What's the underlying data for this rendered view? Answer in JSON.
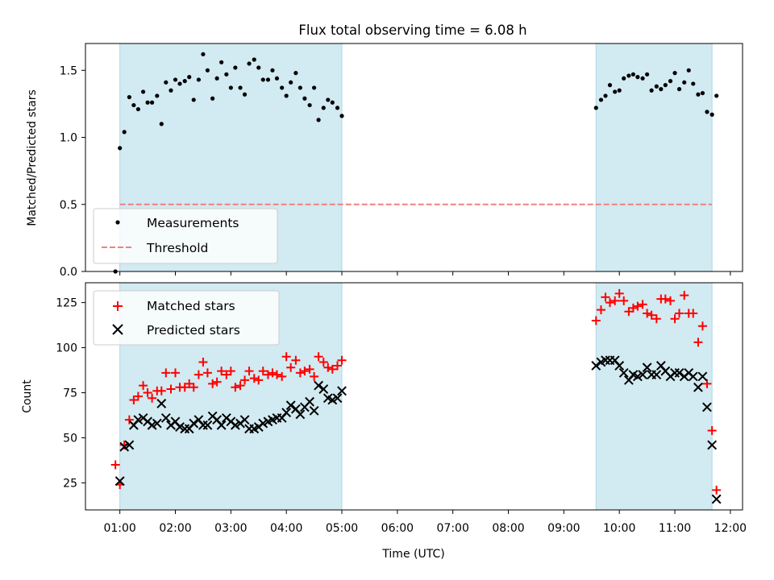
{
  "chart_data": {
    "title": "Flux total observing time = 6.08 h",
    "xlabel": "Time (UTC)",
    "x_range_hours": [
      0.38,
      12.22
    ],
    "x_ticks": [
      {
        "h": 1,
        "label": "01:00"
      },
      {
        "h": 2,
        "label": "02:00"
      },
      {
        "h": 3,
        "label": "03:00"
      },
      {
        "h": 4,
        "label": "04:00"
      },
      {
        "h": 5,
        "label": "05:00"
      },
      {
        "h": 6,
        "label": "06:00"
      },
      {
        "h": 7,
        "label": "07:00"
      },
      {
        "h": 8,
        "label": "08:00"
      },
      {
        "h": 9,
        "label": "09:00"
      },
      {
        "h": 10,
        "label": "10:00"
      },
      {
        "h": 11,
        "label": "11:00"
      },
      {
        "h": 12,
        "label": "12:00"
      }
    ],
    "shaded_intervals_hours": [
      [
        1.0,
        5.0
      ],
      [
        9.58,
        11.67
      ]
    ],
    "shade_color": "#add8e6",
    "top": {
      "type": "scatter",
      "ylabel": "Matched/Predicted stars",
      "ylim": [
        0,
        1.7
      ],
      "yticks": [
        {
          "v": 0,
          "label": "0.0"
        },
        {
          "v": 0.5,
          "label": "0.5"
        },
        {
          "v": 1.0,
          "label": "1.0"
        },
        {
          "v": 1.5,
          "label": "1.5"
        }
      ],
      "legend": {
        "position": "lower-left",
        "entries": [
          "Measurements",
          "Threshold"
        ]
      },
      "series": [
        {
          "name": "Measurements",
          "color": "#000000",
          "x": [
            0.92,
            1.0,
            1.08,
            1.17,
            1.25,
            1.33,
            1.42,
            1.5,
            1.58,
            1.67,
            1.75,
            1.83,
            1.92,
            2.0,
            2.08,
            2.17,
            2.25,
            2.33,
            2.42,
            2.5,
            2.58,
            2.67,
            2.75,
            2.83,
            2.92,
            3.0,
            3.08,
            3.17,
            3.25,
            3.33,
            3.42,
            3.5,
            3.58,
            3.67,
            3.75,
            3.83,
            3.92,
            4.0,
            4.08,
            4.17,
            4.25,
            4.33,
            4.42,
            4.5,
            4.58,
            4.67,
            4.75,
            4.83,
            4.92,
            5.0,
            9.58,
            9.67,
            9.75,
            9.83,
            9.92,
            10.0,
            10.08,
            10.17,
            10.25,
            10.33,
            10.42,
            10.5,
            10.58,
            10.67,
            10.75,
            10.83,
            10.92,
            11.0,
            11.08,
            11.17,
            11.25,
            11.33,
            11.42,
            11.5,
            11.58,
            11.67,
            11.75
          ],
          "y": [
            0.0,
            0.92,
            1.04,
            1.3,
            1.24,
            1.21,
            1.34,
            1.26,
            1.26,
            1.31,
            1.1,
            1.41,
            1.35,
            1.43,
            1.4,
            1.42,
            1.45,
            1.28,
            1.43,
            1.62,
            1.5,
            1.29,
            1.44,
            1.56,
            1.47,
            1.37,
            1.52,
            1.37,
            1.32,
            1.55,
            1.58,
            1.52,
            1.43,
            1.43,
            1.5,
            1.44,
            1.37,
            1.31,
            1.41,
            1.48,
            1.37,
            1.29,
            1.24,
            1.37,
            1.13,
            1.22,
            1.28,
            1.26,
            1.22,
            1.16,
            1.22,
            1.28,
            1.31,
            1.39,
            1.34,
            1.35,
            1.44,
            1.46,
            1.47,
            1.45,
            1.44,
            1.47,
            1.35,
            1.38,
            1.36,
            1.39,
            1.42,
            1.48,
            1.36,
            1.41,
            1.5,
            1.4,
            1.32,
            1.33,
            1.19,
            1.17,
            1.31
          ]
        },
        {
          "name": "Threshold",
          "type": "dashed-line",
          "color": "#f08080",
          "x": [
            1.0,
            11.67
          ],
          "y": [
            0.5,
            0.5
          ]
        }
      ]
    },
    "bottom": {
      "type": "scatter",
      "ylabel": "Count",
      "ylim": [
        10,
        136
      ],
      "yticks": [
        {
          "v": 25,
          "label": "25"
        },
        {
          "v": 50,
          "label": "50"
        },
        {
          "v": 75,
          "label": "75"
        },
        {
          "v": 100,
          "label": "100"
        },
        {
          "v": 125,
          "label": "125"
        }
      ],
      "legend": {
        "position": "upper-left",
        "entries": [
          "Matched stars",
          "Predicted stars"
        ]
      },
      "series": [
        {
          "name": "Matched stars",
          "marker": "plus",
          "color": "#ff0000",
          "x": [
            0.92,
            1.0,
            1.08,
            1.17,
            1.25,
            1.33,
            1.42,
            1.5,
            1.58,
            1.67,
            1.75,
            1.83,
            1.92,
            2.0,
            2.08,
            2.17,
            2.25,
            2.33,
            2.42,
            2.5,
            2.58,
            2.67,
            2.75,
            2.83,
            2.92,
            3.0,
            3.08,
            3.17,
            3.25,
            3.33,
            3.42,
            3.5,
            3.58,
            3.67,
            3.75,
            3.83,
            3.92,
            4.0,
            4.08,
            4.17,
            4.25,
            4.33,
            4.42,
            4.5,
            4.58,
            4.67,
            4.75,
            4.83,
            4.92,
            5.0,
            9.58,
            9.67,
            9.75,
            9.83,
            9.92,
            10.0,
            10.08,
            10.17,
            10.25,
            10.33,
            10.42,
            10.5,
            10.58,
            10.67,
            10.75,
            10.83,
            10.92,
            11.0,
            11.08,
            11.17,
            11.25,
            11.33,
            11.42,
            11.5,
            11.58,
            11.67,
            11.75
          ],
          "y": [
            35,
            24,
            46,
            60,
            71,
            73,
            79,
            75,
            72,
            76,
            76,
            86,
            77,
            86,
            78,
            78,
            80,
            78,
            85,
            92,
            86,
            80,
            81,
            87,
            85,
            87,
            78,
            79,
            82,
            87,
            83,
            82,
            87,
            85,
            86,
            85,
            84,
            95,
            89,
            93,
            86,
            87,
            88,
            84,
            95,
            92,
            89,
            88,
            90,
            93,
            115,
            121,
            128,
            125,
            126,
            130,
            126,
            120,
            122,
            123,
            124,
            119,
            118,
            116,
            127,
            127,
            126,
            116,
            119,
            129,
            119,
            119,
            103,
            112,
            80,
            54,
            21
          ]
        },
        {
          "name": "Predicted stars",
          "marker": "x",
          "color": "#000000",
          "x": [
            0.92,
            1.0,
            1.08,
            1.17,
            1.25,
            1.33,
            1.42,
            1.5,
            1.58,
            1.67,
            1.75,
            1.83,
            1.92,
            2.0,
            2.08,
            2.17,
            2.25,
            2.33,
            2.42,
            2.5,
            2.58,
            2.67,
            2.75,
            2.83,
            2.92,
            3.0,
            3.08,
            3.17,
            3.25,
            3.33,
            3.42,
            3.5,
            3.58,
            3.67,
            3.75,
            3.83,
            3.92,
            4.0,
            4.08,
            4.17,
            4.25,
            4.33,
            4.42,
            4.5,
            4.58,
            4.67,
            4.75,
            4.83,
            4.92,
            5.0,
            9.58,
            9.67,
            9.75,
            9.83,
            9.92,
            10.0,
            10.08,
            10.17,
            10.25,
            10.33,
            10.42,
            10.5,
            10.58,
            10.67,
            10.75,
            10.83,
            10.92,
            11.0,
            11.08,
            11.17,
            11.25,
            11.33,
            11.42,
            11.5,
            11.58,
            11.67,
            11.75
          ],
          "y": [
            null,
            26,
            45,
            46,
            57,
            60,
            61,
            59,
            57,
            58,
            69,
            61,
            57,
            59,
            56,
            55,
            55,
            58,
            60,
            57,
            57,
            62,
            60,
            57,
            61,
            59,
            57,
            58,
            60,
            55,
            55,
            56,
            58,
            59,
            60,
            61,
            61,
            64,
            68,
            66,
            63,
            67,
            70,
            65,
            79,
            77,
            72,
            71,
            72,
            76,
            90,
            92,
            93,
            93,
            93,
            90,
            86,
            82,
            85,
            84,
            85,
            89,
            85,
            85,
            90,
            87,
            84,
            86,
            86,
            84,
            86,
            84,
            78,
            84,
            67,
            46,
            16
          ]
        }
      ]
    }
  }
}
